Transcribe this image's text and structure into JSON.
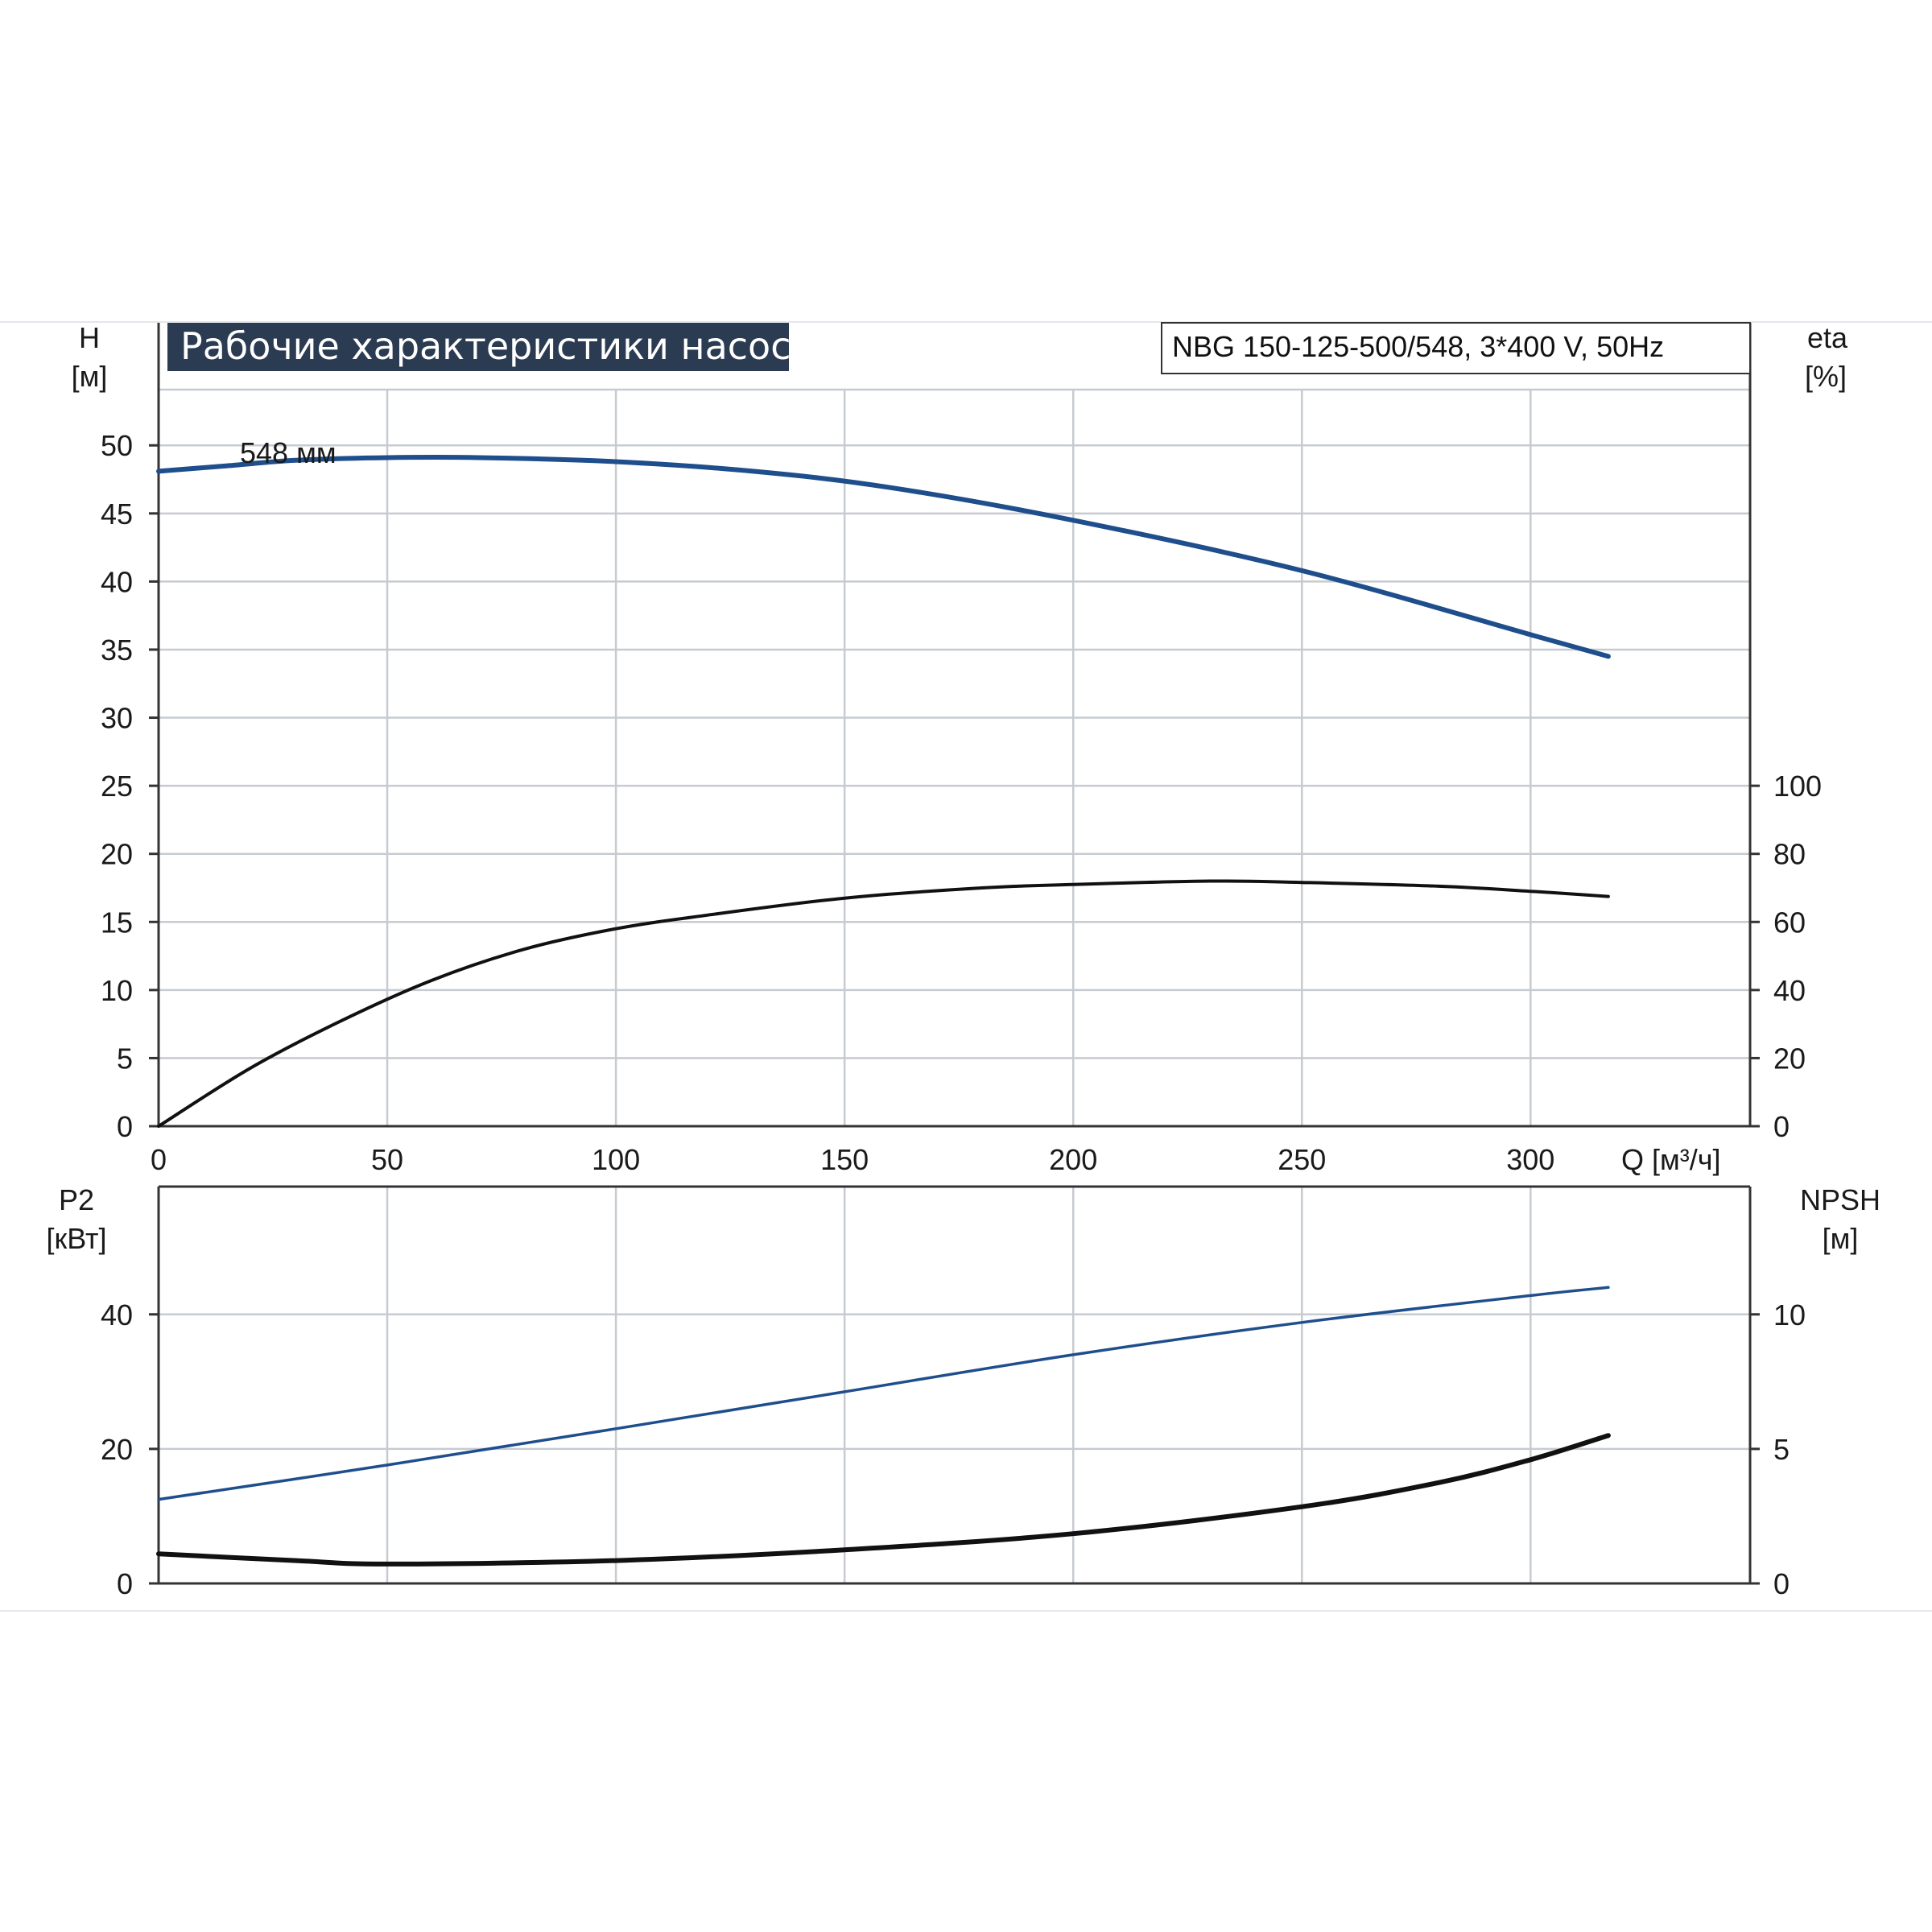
{
  "chart_data": [
    {
      "type": "line",
      "title": "Рабочие характеристики насоса",
      "model": "NBG 150-125-500/548, 3*400 V, 50Hz",
      "x_ticks": [
        "0",
        "50",
        "100",
        "150",
        "200",
        "250",
        "300"
      ],
      "xlabel": "Q [м³/ч]",
      "xlim": [
        0,
        348
      ],
      "left_axis": {
        "label_top": "H",
        "label_unit": "[м]",
        "ylim": [
          0,
          59
        ],
        "ticks": [
          "0",
          "5",
          "10",
          "15",
          "20",
          "25",
          "30",
          "35",
          "40",
          "45",
          "50"
        ]
      },
      "right_axis": {
        "label_top": "eta",
        "label_unit": "[%]",
        "ylim": [
          0,
          236
        ],
        "ticks": [
          "0",
          "20",
          "40",
          "60",
          "80",
          "100"
        ]
      },
      "grid": true,
      "annotation": "548 мм",
      "series": [
        {
          "key": "head",
          "axis": "left",
          "color": "#1f4e8c",
          "x": [
            0,
            15,
            30,
            50,
            70,
            100,
            130,
            160,
            200,
            250,
            300,
            317
          ],
          "y": [
            48.1,
            48.5,
            48.9,
            49.1,
            49.1,
            48.8,
            48.1,
            46.9,
            44.5,
            40.8,
            36.1,
            34.5
          ]
        },
        {
          "key": "efficiency",
          "axis": "right",
          "color": "#111111",
          "x": [
            0,
            20,
            40,
            60,
            80,
            100,
            120,
            150,
            180,
            200,
            230,
            250,
            280,
            300,
            317
          ],
          "y": [
            0,
            17,
            31,
            43,
            52,
            58,
            62,
            67,
            70,
            71,
            72,
            71.6,
            70.5,
            69,
            67.5
          ]
        }
      ]
    },
    {
      "type": "line",
      "x_ticks": [
        "0",
        "50",
        "100",
        "150",
        "200",
        "250",
        "300"
      ],
      "xlim": [
        0,
        348
      ],
      "left_axis": {
        "label_top": "P2",
        "label_unit": "[кВт]",
        "ylim": [
          0,
          59
        ],
        "ticks": [
          "0",
          "20",
          "40"
        ]
      },
      "right_axis": {
        "label_top": "NPSH",
        "label_unit": "[м]",
        "ylim": [
          0,
          14.75
        ],
        "ticks": [
          "0",
          "5",
          "10"
        ]
      },
      "grid": true,
      "series": [
        {
          "key": "power",
          "axis": "left",
          "color": "#1f4e8c",
          "x": [
            0,
            50,
            100,
            150,
            200,
            250,
            300,
            317
          ],
          "y": [
            12.5,
            17.6,
            23.0,
            28.5,
            34.0,
            38.8,
            42.8,
            44.0
          ]
        },
        {
          "key": "npsh",
          "axis": "right",
          "color": "#111111",
          "x": [
            0,
            30,
            50,
            100,
            150,
            200,
            250,
            280,
            300,
            317
          ],
          "y": [
            1.1,
            0.85,
            0.72,
            0.85,
            1.25,
            1.85,
            2.85,
            3.75,
            4.6,
            5.5
          ]
        }
      ]
    }
  ]
}
